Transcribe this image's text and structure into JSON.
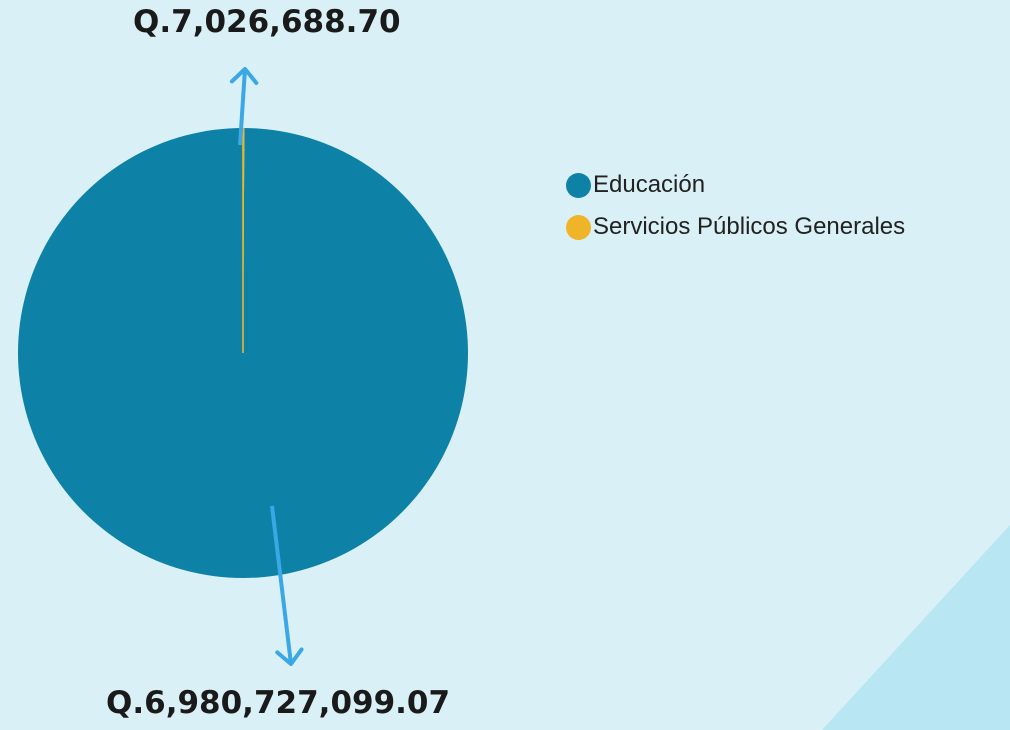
{
  "chart_data": {
    "type": "pie",
    "categories": [
      "Educación",
      "Servicios Públicos Generales"
    ],
    "values": [
      6980727099.07,
      7026688.7
    ],
    "value_labels": [
      "Q.6,980,727,099.07",
      "Q.7,026,688.70"
    ],
    "colors": [
      "#0e82a6",
      "#f0b429"
    ],
    "legend_position": "right"
  },
  "legend": {
    "items": [
      {
        "label": "Educación",
        "color": "#0e82a6"
      },
      {
        "label": "Servicios Públicos Generales",
        "color": "#f0b429"
      }
    ]
  },
  "colors": {
    "background": "#d8f0f6",
    "accent_shape": "#b8e6f2",
    "arrow": "#3aa8e6"
  }
}
